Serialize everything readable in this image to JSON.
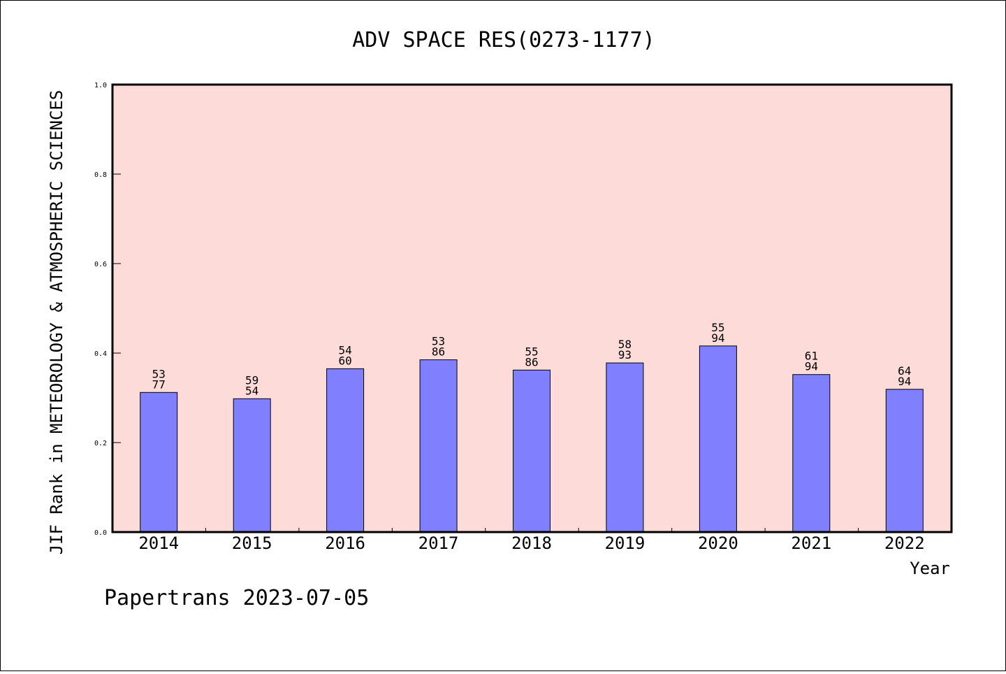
{
  "chart_data": {
    "type": "bar",
    "title": "ADV SPACE RES(0273-1177)",
    "ylabel": "JIF Rank in METEOROLOGY & ATMOSPHERIC SCIENCES",
    "xlabel": "Year",
    "ylim": [
      0,
      1.0
    ],
    "yticks": [
      "0.0",
      "0.2",
      "0.4",
      "0.6",
      "0.8",
      "1.0"
    ],
    "categories": [
      "2014",
      "2015",
      "2016",
      "2017",
      "2018",
      "2019",
      "2020",
      "2021",
      "2022"
    ],
    "values": [
      0.312,
      0.298,
      0.365,
      0.385,
      0.362,
      0.378,
      0.416,
      0.352,
      0.319
    ],
    "labels": [
      [
        "53",
        "77"
      ],
      [
        "59",
        "54"
      ],
      [
        "54",
        "60"
      ],
      [
        "53",
        "86"
      ],
      [
        "55",
        "86"
      ],
      [
        "58",
        "93"
      ],
      [
        "55",
        "94"
      ],
      [
        "61",
        "94"
      ],
      [
        "64",
        "94"
      ]
    ],
    "plot_background": "#fddbd8",
    "bar_color": "#8080ff",
    "grid": false
  },
  "footer": "Papertrans 2023-07-05"
}
